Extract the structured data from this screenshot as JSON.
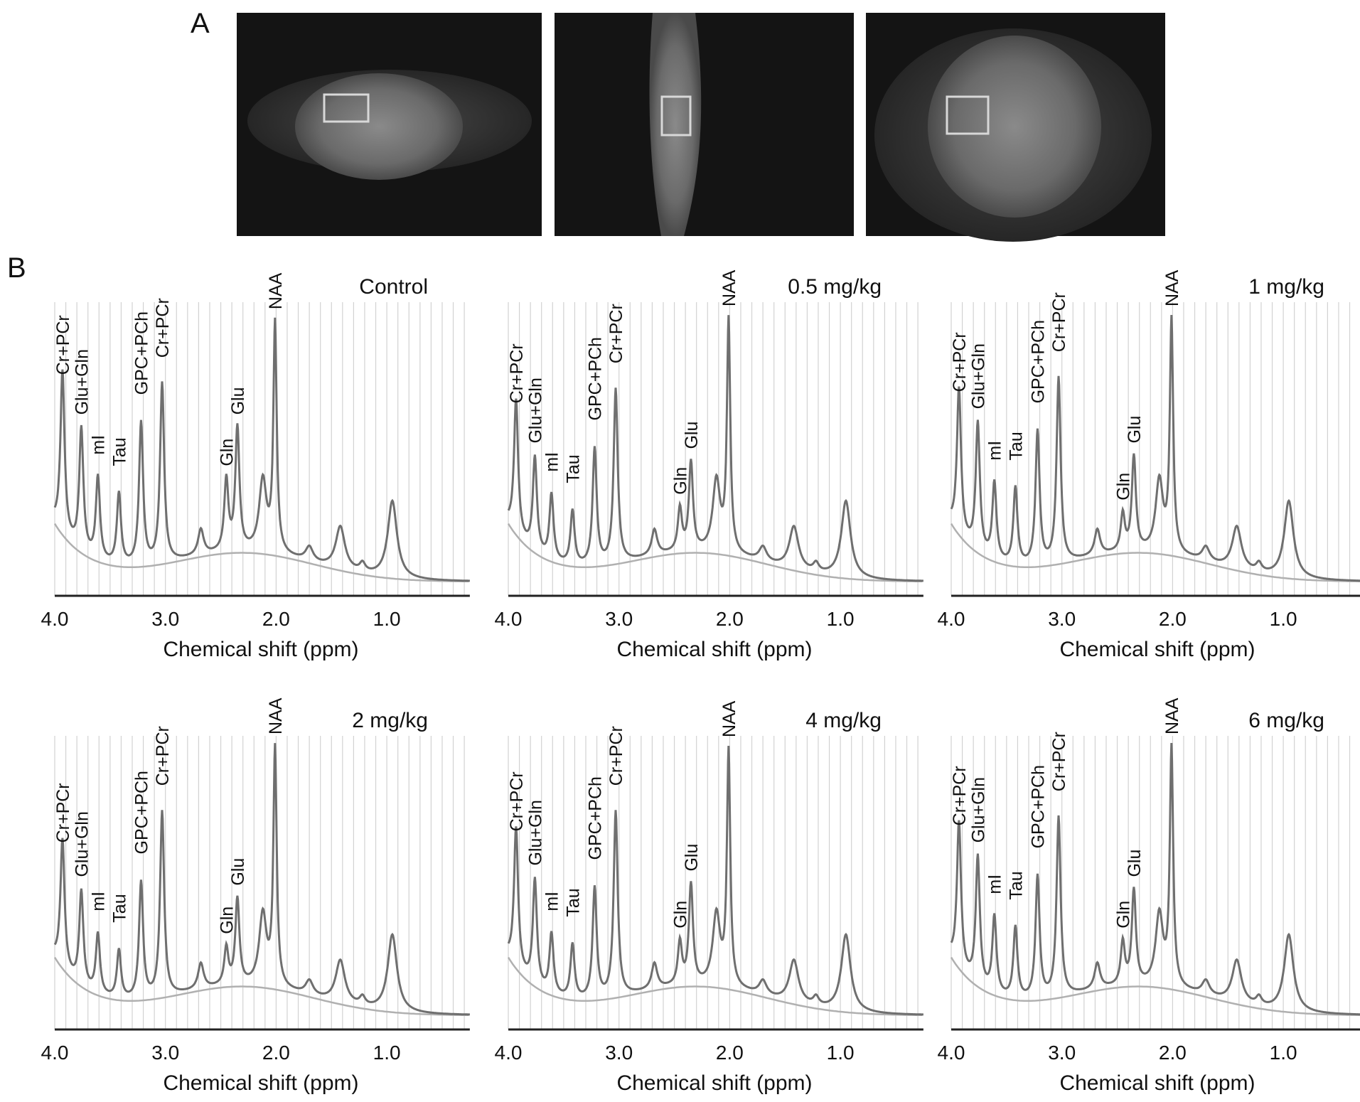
{
  "figure": {
    "panel_a_label": "A",
    "panel_b_label": "B",
    "mri_views": [
      {
        "view": "coronal",
        "voi_box": true
      },
      {
        "view": "sagittal",
        "voi_box": true
      },
      {
        "view": "axial",
        "voi_box": true
      }
    ],
    "colors": {
      "spectrum": "#6f6f6f",
      "baseline": "#b0b0b0",
      "gridline": "#d2d2d2",
      "axis": "#222222",
      "mri_background": "#141414",
      "voi_box": "#d8d8d8"
    }
  },
  "chart_data": [
    {
      "type": "line",
      "title": "Control",
      "xlabel": "Chemical shift (ppm)",
      "xlim": [
        4.0,
        0.25
      ],
      "x_reversed": true,
      "xticks": [
        "4.0",
        "3.0",
        "2.0",
        "1.0"
      ],
      "grid": true,
      "peaks": [
        {
          "label": "Cr+PCr",
          "ppm": 3.93,
          "height": 0.72
        },
        {
          "label": "Glu+Gln",
          "ppm": 3.76,
          "height": 0.58
        },
        {
          "label": "mI",
          "ppm": 3.61,
          "height": 0.44
        },
        {
          "label": "Tau",
          "ppm": 3.42,
          "height": 0.4
        },
        {
          "label": "GPC+PCh",
          "ppm": 3.22,
          "height": 0.65
        },
        {
          "label": "Cr+PCr",
          "ppm": 3.03,
          "height": 0.78
        },
        {
          "label": "Gln",
          "ppm": 2.45,
          "height": 0.4
        },
        {
          "label": "Glu",
          "ppm": 2.35,
          "height": 0.58
        },
        {
          "label": "NAA",
          "ppm": 2.01,
          "height": 0.95
        }
      ]
    },
    {
      "type": "line",
      "title": "0.5 mg/kg",
      "xlabel": "Chemical shift (ppm)",
      "xlim": [
        4.0,
        0.25
      ],
      "x_reversed": true,
      "xticks": [
        "4.0",
        "3.0",
        "2.0",
        "1.0"
      ],
      "grid": true,
      "peaks": [
        {
          "label": "Cr+PCr",
          "ppm": 3.93,
          "height": 0.62
        },
        {
          "label": "Glu+Gln",
          "ppm": 3.76,
          "height": 0.48
        },
        {
          "label": "mI",
          "ppm": 3.61,
          "height": 0.38
        },
        {
          "label": "Tau",
          "ppm": 3.42,
          "height": 0.34
        },
        {
          "label": "GPC+PCh",
          "ppm": 3.22,
          "height": 0.56
        },
        {
          "label": "Cr+PCr",
          "ppm": 3.03,
          "height": 0.76
        },
        {
          "label": "Gln",
          "ppm": 2.45,
          "height": 0.3
        },
        {
          "label": "Glu",
          "ppm": 2.35,
          "height": 0.46
        },
        {
          "label": "NAA",
          "ppm": 2.01,
          "height": 0.96
        }
      ]
    },
    {
      "type": "line",
      "title": "1 mg/kg",
      "xlabel": "Chemical shift (ppm)",
      "xlim": [
        4.0,
        0.25
      ],
      "x_reversed": true,
      "xticks": [
        "4.0",
        "3.0",
        "2.0",
        "1.0"
      ],
      "grid": true,
      "peaks": [
        {
          "label": "Cr+PCr",
          "ppm": 3.93,
          "height": 0.66
        },
        {
          "label": "Glu+Gln",
          "ppm": 3.76,
          "height": 0.6
        },
        {
          "label": "mI",
          "ppm": 3.61,
          "height": 0.42
        },
        {
          "label": "Tau",
          "ppm": 3.42,
          "height": 0.42
        },
        {
          "label": "GPC+PCh",
          "ppm": 3.22,
          "height": 0.62
        },
        {
          "label": "Cr+PCr",
          "ppm": 3.03,
          "height": 0.8
        },
        {
          "label": "Gln",
          "ppm": 2.45,
          "height": 0.28
        },
        {
          "label": "Glu",
          "ppm": 2.35,
          "height": 0.48
        },
        {
          "label": "NAA",
          "ppm": 2.01,
          "height": 0.96
        }
      ]
    },
    {
      "type": "line",
      "title": "2 mg/kg",
      "xlabel": "Chemical shift (ppm)",
      "xlim": [
        4.0,
        0.25
      ],
      "x_reversed": true,
      "xticks": [
        "4.0",
        "3.0",
        "2.0",
        "1.0"
      ],
      "grid": true,
      "peaks": [
        {
          "label": "Cr+PCr",
          "ppm": 3.93,
          "height": 0.6
        },
        {
          "label": "Glu+Gln",
          "ppm": 3.76,
          "height": 0.48
        },
        {
          "label": "mI",
          "ppm": 3.61,
          "height": 0.36
        },
        {
          "label": "Tau",
          "ppm": 3.42,
          "height": 0.32
        },
        {
          "label": "GPC+PCh",
          "ppm": 3.22,
          "height": 0.56
        },
        {
          "label": "Cr+PCr",
          "ppm": 3.03,
          "height": 0.8
        },
        {
          "label": "Gln",
          "ppm": 2.45,
          "height": 0.28
        },
        {
          "label": "Glu",
          "ppm": 2.35,
          "height": 0.45
        },
        {
          "label": "NAA",
          "ppm": 2.01,
          "height": 0.98
        }
      ]
    },
    {
      "type": "line",
      "title": "4 mg/kg",
      "xlabel": "Chemical shift (ppm)",
      "xlim": [
        4.0,
        0.25
      ],
      "x_reversed": true,
      "xticks": [
        "4.0",
        "3.0",
        "2.0",
        "1.0"
      ],
      "grid": true,
      "peaks": [
        {
          "label": "Cr+PCr",
          "ppm": 3.93,
          "height": 0.64
        },
        {
          "label": "Glu+Gln",
          "ppm": 3.76,
          "height": 0.52
        },
        {
          "label": "mI",
          "ppm": 3.61,
          "height": 0.36
        },
        {
          "label": "Tau",
          "ppm": 3.42,
          "height": 0.34
        },
        {
          "label": "GPC+PCh",
          "ppm": 3.22,
          "height": 0.54
        },
        {
          "label": "Cr+PCr",
          "ppm": 3.03,
          "height": 0.8
        },
        {
          "label": "Gln",
          "ppm": 2.45,
          "height": 0.3
        },
        {
          "label": "Glu",
          "ppm": 2.35,
          "height": 0.5
        },
        {
          "label": "NAA",
          "ppm": 2.01,
          "height": 0.97
        }
      ]
    },
    {
      "type": "line",
      "title": "6 mg/kg",
      "xlabel": "Chemical shift (ppm)",
      "xlim": [
        4.0,
        0.25
      ],
      "x_reversed": true,
      "xticks": [
        "4.0",
        "3.0",
        "2.0",
        "1.0"
      ],
      "grid": true,
      "peaks": [
        {
          "label": "Cr+PCr",
          "ppm": 3.93,
          "height": 0.66
        },
        {
          "label": "Glu+Gln",
          "ppm": 3.76,
          "height": 0.6
        },
        {
          "label": "mI",
          "ppm": 3.61,
          "height": 0.42
        },
        {
          "label": "Tau",
          "ppm": 3.42,
          "height": 0.4
        },
        {
          "label": "GPC+PCh",
          "ppm": 3.22,
          "height": 0.58
        },
        {
          "label": "Cr+PCr",
          "ppm": 3.03,
          "height": 0.78
        },
        {
          "label": "Gln",
          "ppm": 2.45,
          "height": 0.3
        },
        {
          "label": "Glu",
          "ppm": 2.35,
          "height": 0.48
        },
        {
          "label": "NAA",
          "ppm": 2.01,
          "height": 0.98
        }
      ]
    }
  ]
}
